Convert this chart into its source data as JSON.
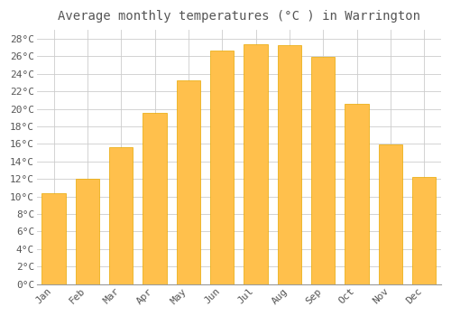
{
  "title": "Average monthly temperatures (°C ) in Warrington",
  "months": [
    "Jan",
    "Feb",
    "Mar",
    "Apr",
    "May",
    "Jun",
    "Jul",
    "Aug",
    "Sep",
    "Oct",
    "Nov",
    "Dec"
  ],
  "temperatures": [
    10.4,
    12.0,
    15.6,
    19.5,
    23.3,
    26.7,
    27.4,
    27.3,
    25.9,
    20.6,
    15.9,
    12.2
  ],
  "bar_color": "#FFC04C",
  "bar_edge_color": "#E8A800",
  "background_color": "#FFFFFF",
  "plot_bg_color": "#FFFFFF",
  "grid_color": "#CCCCCC",
  "text_color": "#555555",
  "ylim": [
    0,
    29
  ],
  "ytick_step": 2,
  "title_fontsize": 10,
  "tick_fontsize": 8,
  "font_family": "monospace"
}
